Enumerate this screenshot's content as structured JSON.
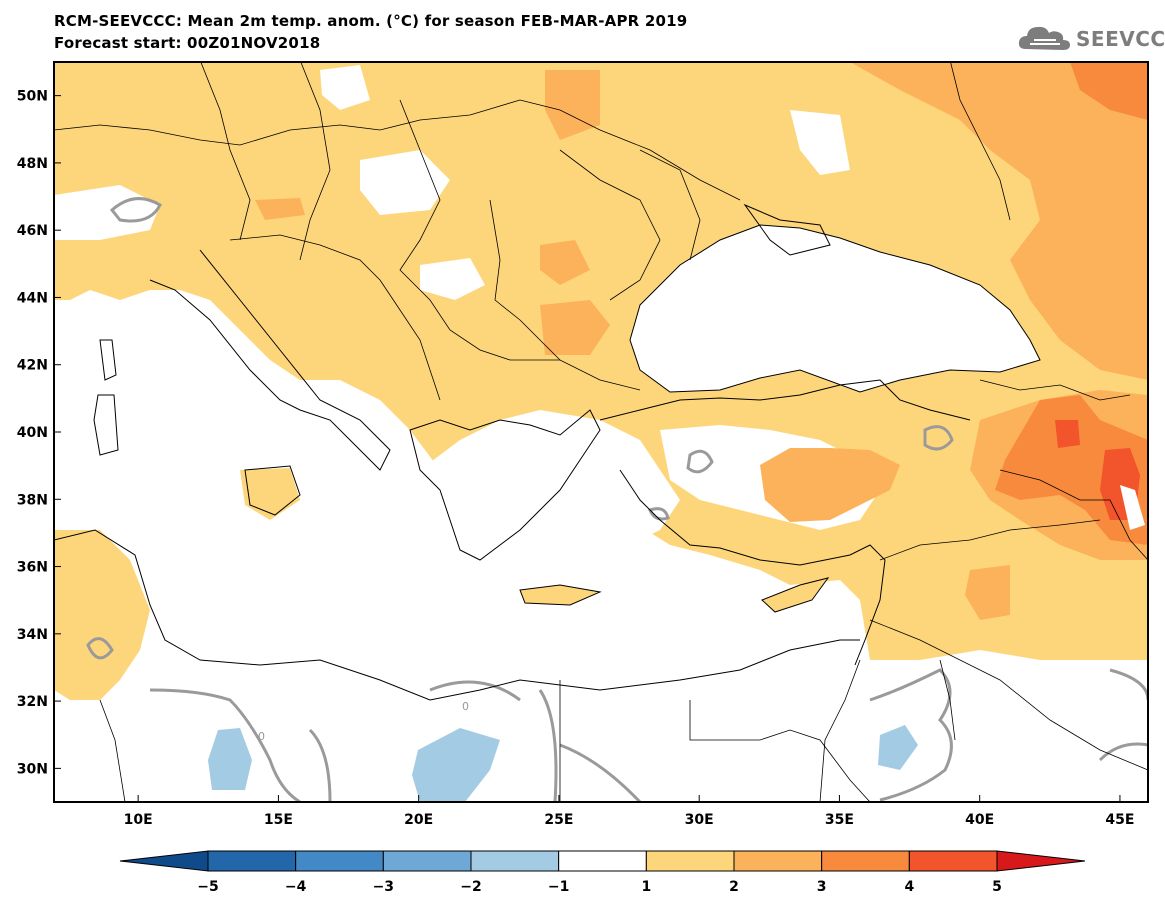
{
  "header": {
    "title": "RCM-SEEVCCC: Mean 2m temp. anom. (°C) for season FEB-MAR-APR 2019",
    "subtitle": "Forecast start: 00Z01NOV2018",
    "logo_text": "SEEVCCC"
  },
  "map": {
    "lon_range": [
      7,
      46
    ],
    "lat_range": [
      29,
      51
    ],
    "lon_ticks": [
      "10E",
      "15E",
      "20E",
      "25E",
      "30E",
      "35E",
      "40E",
      "45E"
    ],
    "lat_ticks": [
      "50N",
      "48N",
      "46N",
      "44N",
      "42N",
      "40N",
      "38N",
      "36N",
      "34N",
      "32N",
      "30N"
    ],
    "contour_label": "0"
  },
  "colorbar": {
    "labels": [
      "−5",
      "−4",
      "−3",
      "−2",
      "−1",
      "1",
      "2",
      "3",
      "4",
      "5"
    ],
    "colors": [
      "#0f4a8a",
      "#2367aa",
      "#4289c6",
      "#6ea8d6",
      "#a3cbe4",
      "#ffffff",
      "#fdd67b",
      "#fcb25a",
      "#f88a3e",
      "#f2542b",
      "#d7191c"
    ]
  }
}
